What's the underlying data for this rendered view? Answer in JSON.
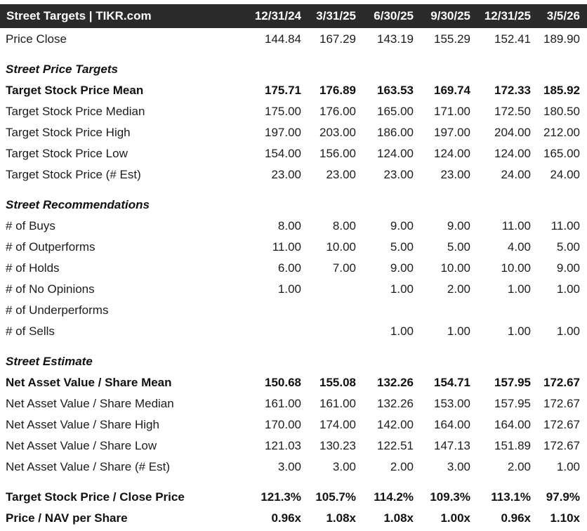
{
  "table": {
    "title": "Street Targets | TIKR.com",
    "columns": [
      "12/31/24",
      "3/31/25",
      "6/30/25",
      "9/30/25",
      "12/31/25",
      "3/5/26"
    ],
    "price_close": {
      "label": "Price Close",
      "values": [
        "144.84",
        "167.29",
        "143.19",
        "155.29",
        "152.41",
        "189.90"
      ]
    },
    "sections": {
      "targets": "Street Price Targets",
      "recommendations": "Street Recommendations",
      "estimate": "Street Estimate"
    },
    "target_mean": {
      "label": "Target Stock Price Mean",
      "values": [
        "175.71",
        "176.89",
        "163.53",
        "169.74",
        "172.33",
        "185.92"
      ]
    },
    "target_median": {
      "label": "Target Stock Price Median",
      "values": [
        "175.00",
        "176.00",
        "165.00",
        "171.00",
        "172.50",
        "180.50"
      ]
    },
    "target_high": {
      "label": "Target Stock Price High",
      "values": [
        "197.00",
        "203.00",
        "186.00",
        "197.00",
        "204.00",
        "212.00"
      ]
    },
    "target_low": {
      "label": "Target Stock Price Low",
      "values": [
        "154.00",
        "156.00",
        "124.00",
        "124.00",
        "124.00",
        "165.00"
      ]
    },
    "target_est": {
      "label": "Target Stock Price (# Est)",
      "values": [
        "23.00",
        "23.00",
        "23.00",
        "23.00",
        "24.00",
        "24.00"
      ]
    },
    "buys": {
      "label": "# of Buys",
      "values": [
        "8.00",
        "8.00",
        "9.00",
        "9.00",
        "11.00",
        "11.00"
      ]
    },
    "outperforms": {
      "label": "# of Outperforms",
      "values": [
        "11.00",
        "10.00",
        "5.00",
        "5.00",
        "4.00",
        "5.00"
      ]
    },
    "holds": {
      "label": "# of Holds",
      "values": [
        "6.00",
        "7.00",
        "9.00",
        "10.00",
        "10.00",
        "9.00"
      ]
    },
    "no_opinions": {
      "label": "# of No Opinions",
      "values": [
        "1.00",
        "",
        "1.00",
        "2.00",
        "1.00",
        "1.00"
      ]
    },
    "underperforms": {
      "label": "# of Underperforms",
      "values": [
        "",
        "",
        "",
        "",
        "",
        ""
      ]
    },
    "sells": {
      "label": "# of Sells",
      "values": [
        "",
        "",
        "1.00",
        "1.00",
        "1.00",
        "1.00"
      ]
    },
    "nav_mean": {
      "label": "Net Asset Value / Share Mean",
      "values": [
        "150.68",
        "155.08",
        "132.26",
        "154.71",
        "157.95",
        "172.67"
      ]
    },
    "nav_median": {
      "label": "Net Asset Value / Share Median",
      "values": [
        "161.00",
        "161.00",
        "132.26",
        "153.00",
        "157.95",
        "172.67"
      ]
    },
    "nav_high": {
      "label": "Net Asset Value / Share High",
      "values": [
        "170.00",
        "174.00",
        "142.00",
        "164.00",
        "164.00",
        "172.67"
      ]
    },
    "nav_low": {
      "label": "Net Asset Value / Share Low",
      "values": [
        "121.03",
        "130.23",
        "122.51",
        "147.13",
        "151.89",
        "172.67"
      ]
    },
    "nav_est": {
      "label": "Net Asset Value / Share (# Est)",
      "values": [
        "3.00",
        "3.00",
        "2.00",
        "3.00",
        "2.00",
        "1.00"
      ]
    },
    "target_close": {
      "label": "Target Stock Price / Close Price",
      "values": [
        "121.3%",
        "105.7%",
        "114.2%",
        "109.3%",
        "113.1%",
        "97.9%"
      ]
    },
    "price_nav": {
      "label": "Price / NAV per Share",
      "values": [
        "0.96x",
        "1.08x",
        "1.08x",
        "1.00x",
        "0.96x",
        "1.10x"
      ]
    }
  }
}
